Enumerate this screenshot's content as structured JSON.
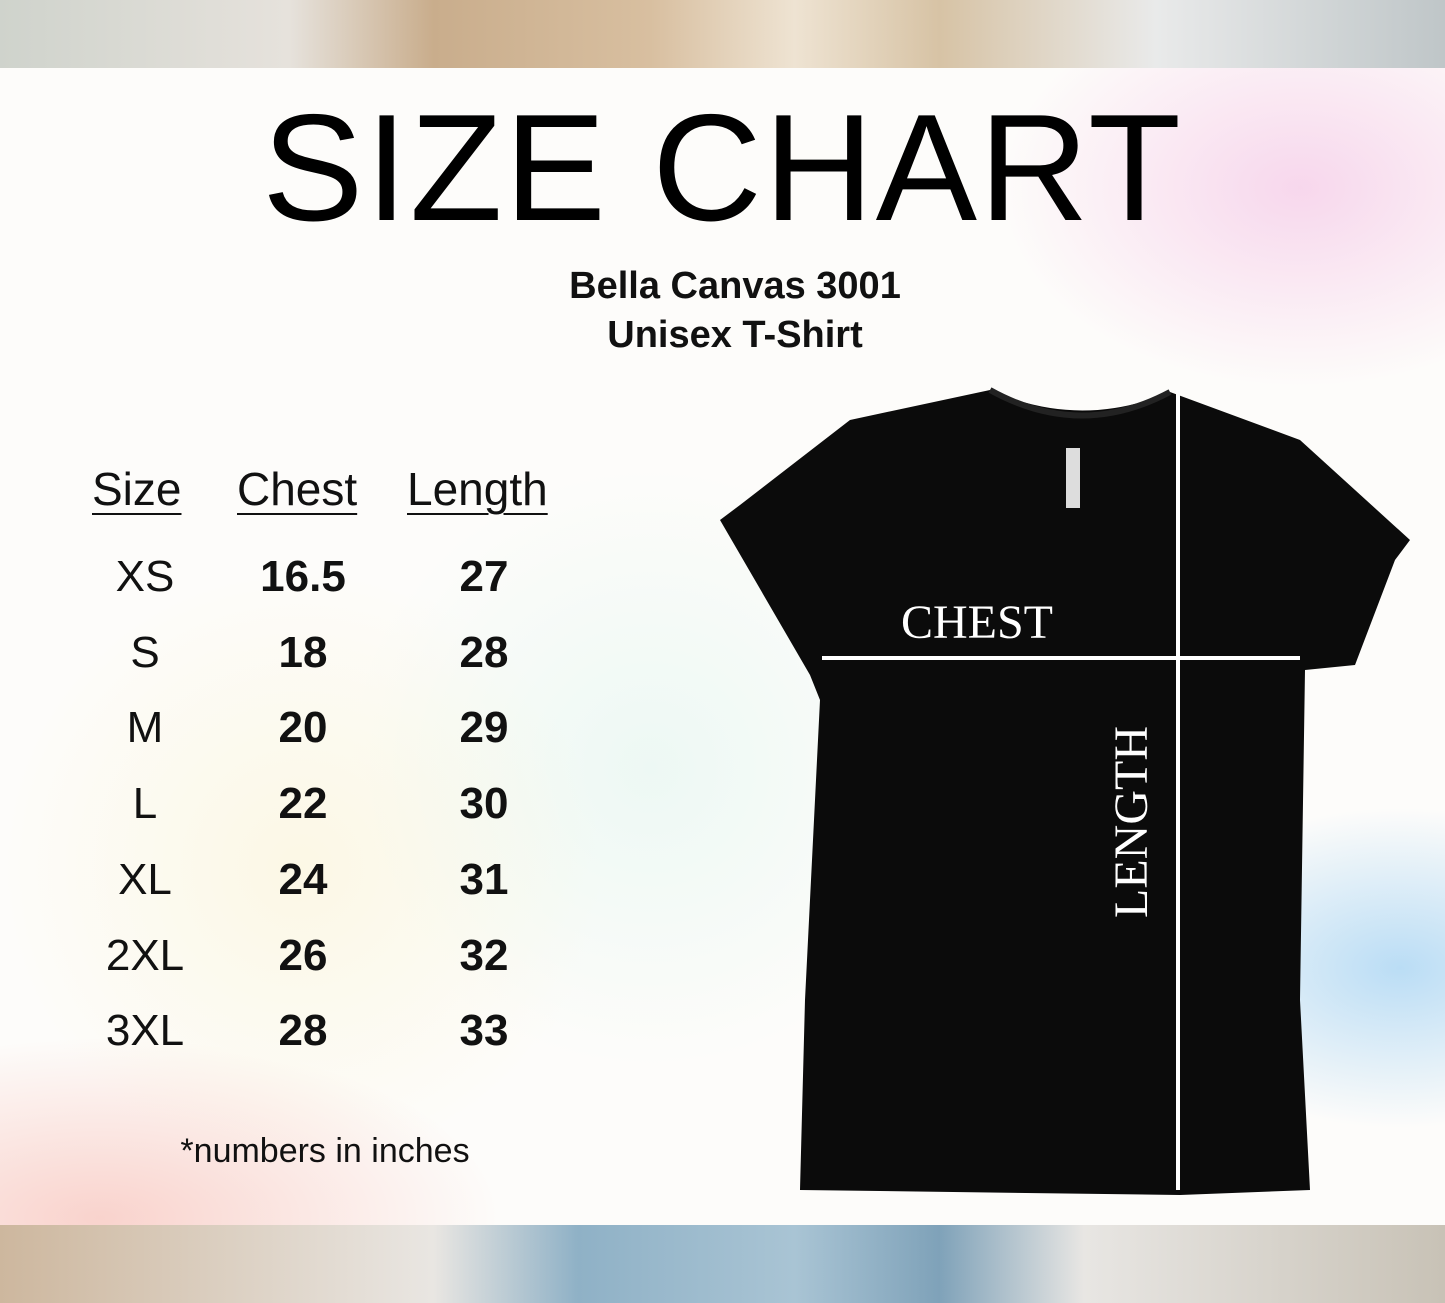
{
  "title": "SIZE CHART",
  "subtitle": [
    "Bella Canvas 3001",
    "Unisex T-Shirt"
  ],
  "table": {
    "headers": [
      "Size",
      "Chest",
      "Length"
    ],
    "rows": [
      [
        "XS",
        "16.5",
        "27"
      ],
      [
        "S",
        "18",
        "28"
      ],
      [
        "M",
        "20",
        "29"
      ],
      [
        "L",
        "22",
        "30"
      ],
      [
        "XL",
        "24",
        "31"
      ],
      [
        "2XL",
        "26",
        "32"
      ],
      [
        "3XL",
        "28",
        "33"
      ]
    ]
  },
  "note": "*numbers in inches",
  "diagram": {
    "chest_label": "CHEST",
    "length_label": "LENGTH"
  }
}
